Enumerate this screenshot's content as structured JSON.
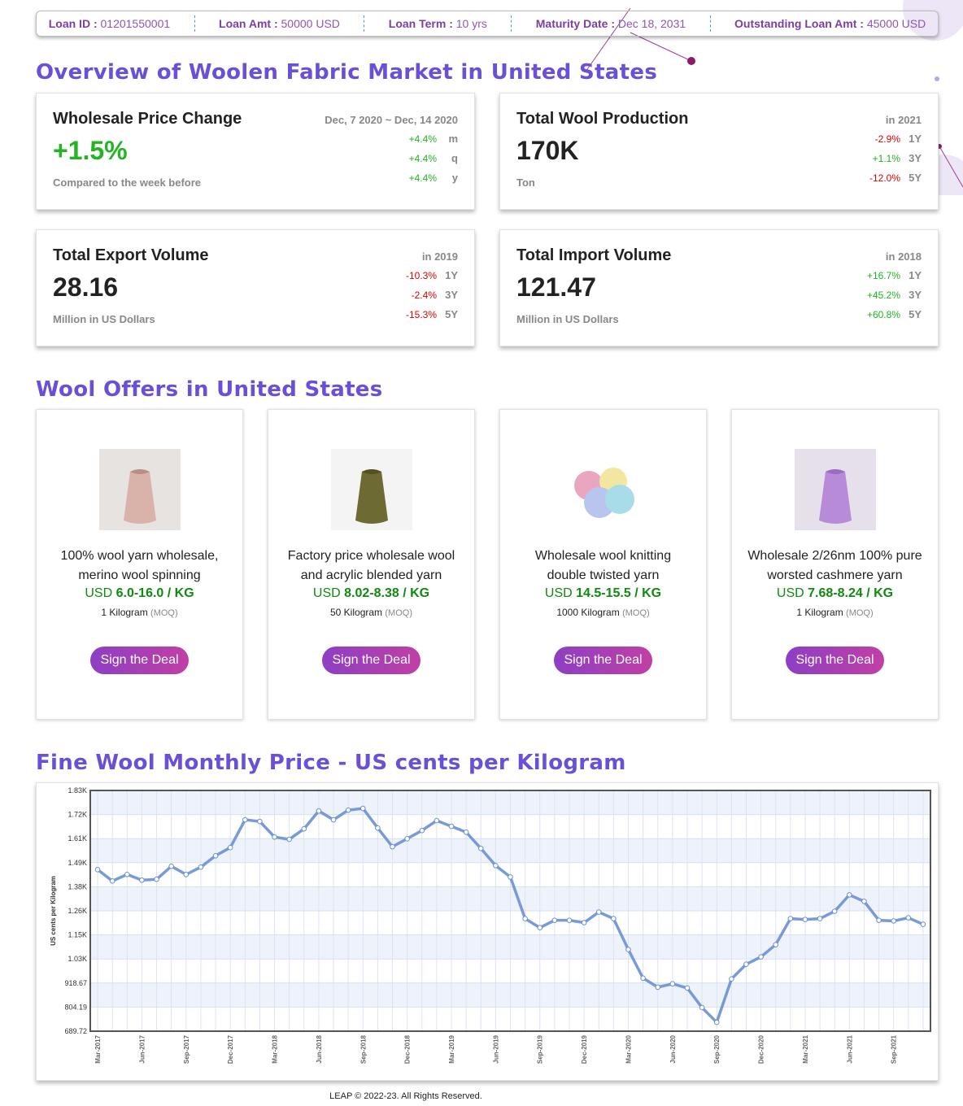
{
  "loan_bar": [
    {
      "label": "Loan ID :",
      "value": "01201550001"
    },
    {
      "label": "Loan Amt :",
      "value": "50000 USD"
    },
    {
      "label": "Loan Term :",
      "value": "10 yrs"
    },
    {
      "label": "Maturity Date :",
      "value": "Dec 18, 2031"
    },
    {
      "label": "Outstanding Loan Amt :",
      "value": "45000 USD"
    }
  ],
  "overview": {
    "title": "Overview of Woolen Fabric Market in United States",
    "cards": [
      {
        "title": "Wholesale Price Change",
        "period": "Dec, 7 2020 ~ Dec, 14 2020",
        "value": "+1.5%",
        "unit": "Compared to the week before",
        "changes": [
          {
            "value": "+4.4%",
            "label": "m"
          },
          {
            "value": "+4.4%",
            "label": "q"
          },
          {
            "value": "+4.4%",
            "label": "y"
          }
        ]
      },
      {
        "title": "Total Wool Production",
        "period": "in 2021",
        "value": "170K",
        "unit": "Ton",
        "changes": [
          {
            "value": "-2.9%",
            "label": "1Y"
          },
          {
            "value": "+1.1%",
            "label": "3Y"
          },
          {
            "value": "-12.0%",
            "label": "5Y"
          }
        ]
      },
      {
        "title": "Total Export Volume",
        "period": "in 2019",
        "value": "28.16",
        "unit": "Million in US Dollars",
        "changes": [
          {
            "value": "-10.3%",
            "label": "1Y"
          },
          {
            "value": "-2.4%",
            "label": "3Y"
          },
          {
            "value": "-15.3%",
            "label": "5Y"
          }
        ]
      },
      {
        "title": "Total Import Volume",
        "period": "in 2018",
        "value": "121.47",
        "unit": "Million in US Dollars",
        "changes": [
          {
            "value": "+16.7%",
            "label": "1Y"
          },
          {
            "value": "+45.2%",
            "label": "3Y"
          },
          {
            "value": "+60.8%",
            "label": "5Y"
          }
        ]
      }
    ]
  },
  "offers": {
    "title": "Wool Offers in United States",
    "items": [
      {
        "title": "100% wool yarn wholesale, merino wool spinning",
        "currency": "USD",
        "price": "6.0-16.0 / KG",
        "moq": "1 Kilogram",
        "moq_label": "(MOQ)",
        "button": "Sign the Deal"
      },
      {
        "title": "Factory price wholesale wool and acrylic blended yarn",
        "currency": "USD",
        "price": "8.02-8.38 / KG",
        "moq": "50 Kilogram",
        "moq_label": "(MOQ)",
        "button": "Sign the Deal"
      },
      {
        "title": "Wholesale wool knitting double twisted yarn",
        "currency": "USD",
        "price": "14.5-15.5 / KG",
        "moq": "1000 Kilogram",
        "moq_label": "(MOQ)",
        "button": "Sign the Deal"
      },
      {
        "title": "Wholesale 2/26nm 100% pure worsted cashmere yarn",
        "currency": "USD",
        "price": "7.68-8.24 / KG",
        "moq": "1 Kilogram",
        "moq_label": "(MOQ)",
        "button": "Sign the Deal"
      }
    ]
  },
  "chart_data": {
    "type": "line",
    "title": "Fine Wool Monthly Price - US cents per Kilogram",
    "y_label": "US cents per Kilogram",
    "categories": [
      "Mar-2017",
      null,
      null,
      "Jun-2017",
      null,
      null,
      "Sep-2017",
      null,
      null,
      "Dec-2017",
      null,
      null,
      "Mar-2018",
      null,
      null,
      "Jun-2018",
      null,
      null,
      "Sep-2018",
      null,
      null,
      "Dec-2018",
      null,
      null,
      "Mar-2019",
      null,
      null,
      "Jun-2019",
      null,
      null,
      "Sep-2019",
      null,
      null,
      "Dec-2019",
      null,
      null,
      "Mar-2020",
      null,
      null,
      "Jun-2020",
      null,
      null,
      "Sep-2020",
      null,
      null,
      "Dec-2020",
      null,
      null,
      "Mar-2021",
      null,
      null,
      "Jun-2021",
      null,
      null,
      "Sep-2021",
      null,
      null
    ],
    "series": [
      {
        "name": "Fine Wool",
        "color": "#6a8fd6",
        "values": [
          1458,
          1404,
          1435,
          1408,
          1412,
          1474,
          1435,
          1470,
          1524,
          1563,
          1695,
          1687,
          1613,
          1602,
          1652,
          1737,
          1695,
          1741,
          1749,
          1656,
          1567,
          1605,
          1644,
          1691,
          1664,
          1636,
          1559,
          1477,
          1423,
          1225,
          1182,
          1217,
          1217,
          1206,
          1256,
          1225,
          1078,
          942,
          899,
          915,
          895,
          802,
          732,
          938,
          1008,
          1043,
          1101,
          1225,
          1221,
          1225,
          1260,
          1338,
          1307,
          1217,
          1214,
          1229,
          1198
        ]
      }
    ],
    "ylim": [
      689.72,
      1834.44
    ],
    "yticks": [
      689.72,
      804.19,
      918.67,
      {
        "value": 1033.14,
        "label": "1.03K"
      },
      {
        "value": 1147.61,
        "label": "1.15K"
      },
      {
        "value": 1262.08,
        "label": "1.26K"
      },
      {
        "value": 1376.55,
        "label": "1.38K"
      },
      {
        "value": 1491.02,
        "label": "1.49K"
      },
      {
        "value": 1605.5,
        "label": "1.61K"
      },
      {
        "value": 1719.97,
        "label": "1.72K"
      },
      {
        "value": 1834.44,
        "label": "1.83K"
      }
    ],
    "grid": true
  },
  "footer": "LEAP © 2022-23. All Rights Reserved."
}
